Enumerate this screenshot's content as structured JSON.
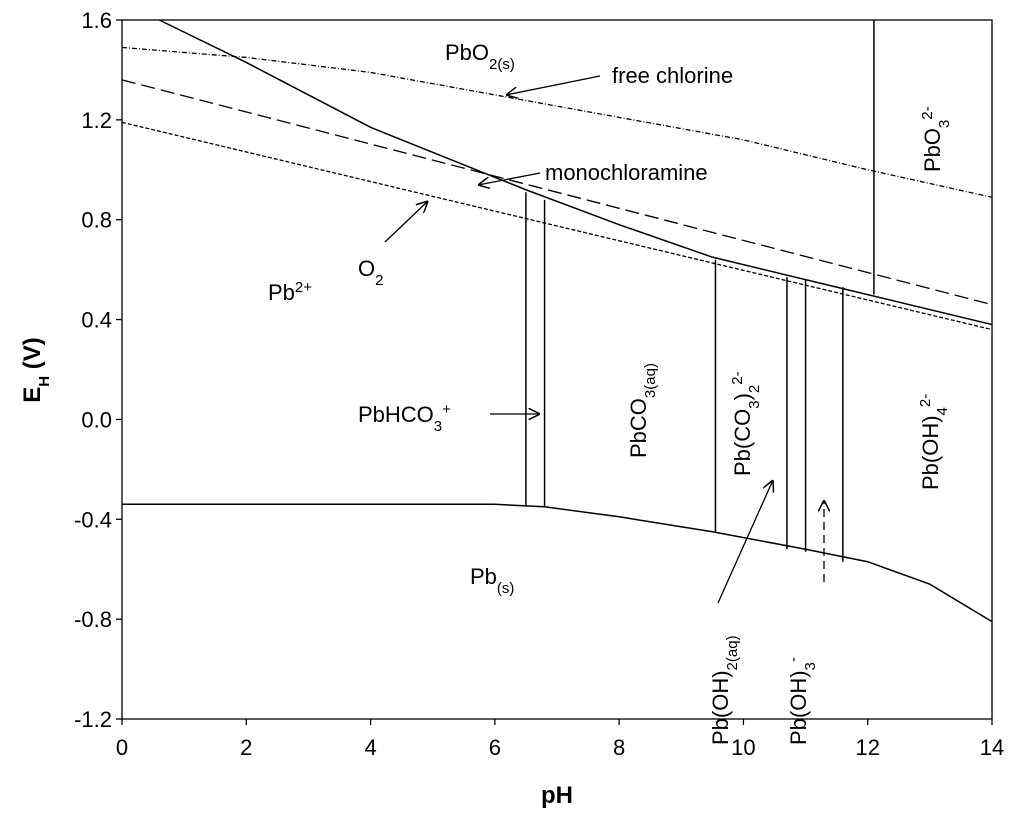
{
  "chart_data": {
    "type": "line",
    "xlabel": "pH",
    "ylabel": [
      "E",
      "H",
      " (V)"
    ],
    "xlim": [
      0,
      14
    ],
    "ylim": [
      -1.2,
      1.6
    ],
    "xticks": [
      0,
      2,
      4,
      6,
      8,
      10,
      12,
      14
    ],
    "yticks": [
      -1.2,
      -0.8,
      -0.4,
      {
        "value": 0,
        "label": "0.0"
      },
      0.4,
      0.8,
      1.2,
      1.6
    ],
    "series": [
      {
        "color": "#000000",
        "style": "dashdot",
        "x": [
          0,
          2,
          4,
          6,
          8,
          10,
          12,
          14
        ],
        "values": [
          1.49,
          1.45,
          1.39,
          1.3,
          1.21,
          1.12,
          1.0,
          0.89
        ]
      },
      {
        "color": "#000000",
        "style": "dashed",
        "x": [
          0,
          14
        ],
        "values": [
          1.36,
          0.46
        ]
      },
      {
        "color": "#000000",
        "style": "dotted",
        "x": [
          0,
          14
        ],
        "values": [
          1.19,
          0.36
        ]
      },
      {
        "color": "#000000",
        "style": "solid",
        "x": [
          0.6,
          2,
          4,
          6,
          6.5,
          8,
          9.5,
          12,
          14
        ],
        "values": [
          1.6,
          1.43,
          1.17,
          0.97,
          0.92,
          0.78,
          0.65,
          0.5,
          0.38
        ]
      },
      {
        "color": "#000000",
        "style": "solid",
        "x": [
          0,
          6,
          6.8,
          8,
          9.5,
          11,
          12,
          13,
          14
        ],
        "values": [
          -0.34,
          -0.34,
          -0.35,
          -0.39,
          -0.45,
          -0.52,
          -0.57,
          -0.66,
          -0.81
        ]
      },
      {
        "color": "#000000",
        "style": "solid",
        "x": [
          12.1,
          12.1
        ],
        "values": [
          1.6,
          0.5
        ]
      },
      {
        "color": "#000000",
        "style": "solid",
        "x": [
          6.5,
          6.5
        ],
        "values": [
          0.91,
          -0.35
        ]
      },
      {
        "color": "#000000",
        "style": "solid",
        "x": [
          6.8,
          6.8
        ],
        "values": [
          0.88,
          -0.35
        ]
      },
      {
        "color": "#000000",
        "style": "solid",
        "x": [
          9.55,
          9.55
        ],
        "values": [
          0.64,
          -0.45
        ]
      },
      {
        "color": "#000000",
        "style": "solid",
        "x": [
          10.7,
          10.7
        ],
        "values": [
          0.57,
          -0.52
        ]
      },
      {
        "color": "#000000",
        "style": "solid",
        "x": [
          11.0,
          11.0
        ],
        "values": [
          0.56,
          -0.53
        ]
      },
      {
        "color": "#000000",
        "style": "solid",
        "x": [
          11.6,
          11.6
        ],
        "values": [
          0.53,
          -0.57
        ]
      }
    ],
    "labels": [
      [
        "PbO",
        "2(s)"
      ],
      [
        "free chlorine"
      ],
      [
        "monochloramine"
      ],
      [
        "O",
        "2"
      ],
      [
        "Pb",
        "2+"
      ],
      [
        "PbHCO",
        "3",
        "+"
      ],
      [
        "PbCO",
        "3(aq)"
      ],
      [
        "Pb(CO",
        "3",
        ")",
        "2",
        "2-"
      ],
      [
        "PbO",
        "3",
        "2-"
      ],
      [
        "Pb(OH)",
        "4",
        "2-"
      ],
      [
        "Pb",
        "(s)"
      ],
      [
        "Pb(OH)",
        "2(aq)"
      ],
      [
        "Pb(OH)",
        "3",
        "-"
      ]
    ]
  }
}
